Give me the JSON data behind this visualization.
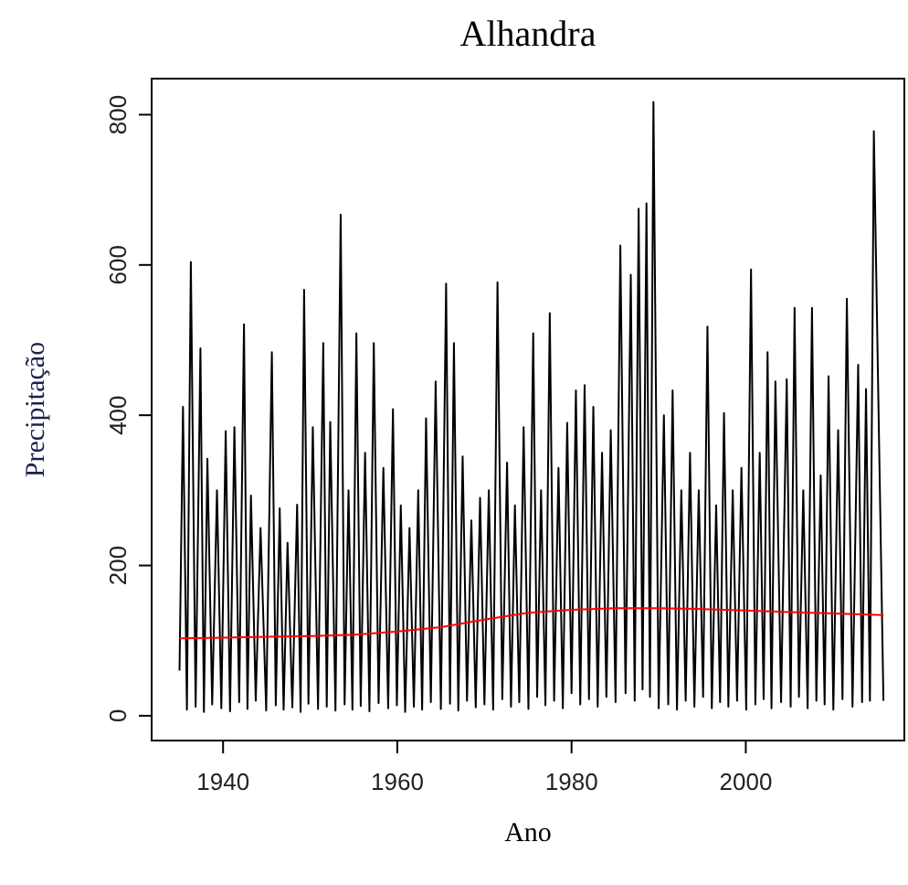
{
  "chart_data": {
    "type": "line",
    "title": "Alhandra",
    "xlabel": "Ano",
    "ylabel": "Precipitação",
    "xlim": [
      1931.8,
      2018.2
    ],
    "ylim": [
      -33,
      848
    ],
    "xticks": [
      1940,
      1960,
      1980,
      2000
    ],
    "yticks": [
      0,
      200,
      400,
      600,
      800
    ],
    "grid": false,
    "marker": "none",
    "line_style": "solid",
    "series": [
      {
        "color": "#000000",
        "x": [
          1935.0,
          1935.4,
          1935.85,
          1936.3,
          1936.85,
          1937.4,
          1937.8,
          1938.2,
          1938.75,
          1939.3,
          1939.8,
          1940.3,
          1940.8,
          1941.3,
          1941.85,
          1942.4,
          1942.8,
          1943.2,
          1943.75,
          1944.3,
          1944.95,
          1945.6,
          1946.05,
          1946.5,
          1946.95,
          1947.4,
          1947.95,
          1948.5,
          1948.9,
          1949.3,
          1949.8,
          1950.3,
          1950.9,
          1951.5,
          1951.9,
          1952.3,
          1952.9,
          1953.5,
          1953.95,
          1954.4,
          1954.85,
          1955.3,
          1955.8,
          1956.3,
          1956.8,
          1957.3,
          1957.85,
          1958.4,
          1958.95,
          1959.5,
          1959.95,
          1960.4,
          1960.9,
          1961.4,
          1961.9,
          1962.4,
          1962.85,
          1963.3,
          1963.85,
          1964.4,
          1965.0,
          1965.6,
          1966.05,
          1966.5,
          1967.0,
          1967.5,
          1968.0,
          1968.5,
          1969.0,
          1969.5,
          1970.0,
          1970.5,
          1971.0,
          1971.5,
          1972.05,
          1972.6,
          1973.05,
          1973.5,
          1974.0,
          1974.5,
          1975.05,
          1975.6,
          1976.05,
          1976.5,
          1977.0,
          1977.5,
          1978.0,
          1978.5,
          1979.0,
          1979.5,
          1980.0,
          1980.5,
          1981.0,
          1981.5,
          1982.0,
          1982.5,
          1983.0,
          1983.5,
          1984.0,
          1984.5,
          1985.05,
          1985.6,
          1986.2,
          1986.8,
          1987.25,
          1987.7,
          1988.15,
          1988.6,
          1989.0,
          1989.4,
          1990.0,
          1990.6,
          1991.1,
          1991.6,
          1992.1,
          1992.6,
          1993.1,
          1993.6,
          1994.1,
          1994.6,
          1995.1,
          1995.6,
          1996.1,
          1996.6,
          1997.05,
          1997.5,
          1998.0,
          1998.5,
          1999.0,
          1999.5,
          2000.05,
          2000.6,
          2001.1,
          2001.6,
          2002.05,
          2002.5,
          2002.95,
          2003.4,
          2004.05,
          2004.7,
          2005.15,
          2005.6,
          2006.1,
          2006.6,
          2007.1,
          2007.6,
          2008.1,
          2008.6,
          2009.05,
          2009.5,
          2010.05,
          2010.6,
          2011.1,
          2011.6,
          2012.25,
          2012.9,
          2013.35,
          2013.8,
          2014.25,
          2014.7,
          2015.8
        ],
        "values": [
          60,
          411,
          8,
          604,
          12,
          489,
          5,
          342,
          15,
          300,
          10,
          379,
          6,
          384,
          18,
          521,
          9,
          293,
          20,
          250,
          7,
          484,
          14,
          276,
          8,
          230,
          11,
          281,
          5,
          567,
          16,
          384,
          9,
          496,
          12,
          391,
          7,
          667,
          15,
          300,
          8,
          509,
          13,
          350,
          6,
          496,
          17,
          330,
          10,
          408,
          14,
          280,
          5,
          250,
          12,
          300,
          8,
          396,
          18,
          445,
          9,
          575,
          16,
          496,
          7,
          345,
          20,
          260,
          11,
          290,
          15,
          300,
          8,
          577,
          22,
          337,
          12,
          280,
          18,
          384,
          9,
          509,
          25,
          300,
          14,
          536,
          20,
          330,
          10,
          390,
          30,
          433,
          15,
          440,
          22,
          411,
          12,
          350,
          25,
          380,
          18,
          626,
          30,
          587,
          20,
          675,
          35,
          682,
          25,
          817,
          10,
          400,
          15,
          433,
          8,
          300,
          20,
          350,
          12,
          300,
          25,
          518,
          10,
          280,
          18,
          403,
          12,
          300,
          20,
          330,
          8,
          594,
          15,
          350,
          22,
          484,
          10,
          445,
          18,
          448,
          12,
          543,
          25,
          300,
          10,
          543,
          20,
          320,
          15,
          452,
          8,
          380,
          22,
          555,
          12,
          467,
          18,
          435,
          20,
          778,
          20
        ]
      },
      {
        "color": "#ff0000",
        "x": [
          1935,
          1940,
          1945,
          1950,
          1955,
          1960,
          1965,
          1970,
          1975,
          1980,
          1985,
          1990,
          1995,
          2000,
          2005,
          2010,
          2015.8
        ],
        "values": [
          103,
          104,
          105,
          106,
          108,
          112,
          118,
          128,
          137,
          141,
          143,
          143,
          142,
          140,
          138,
          136,
          134
        ]
      }
    ]
  }
}
